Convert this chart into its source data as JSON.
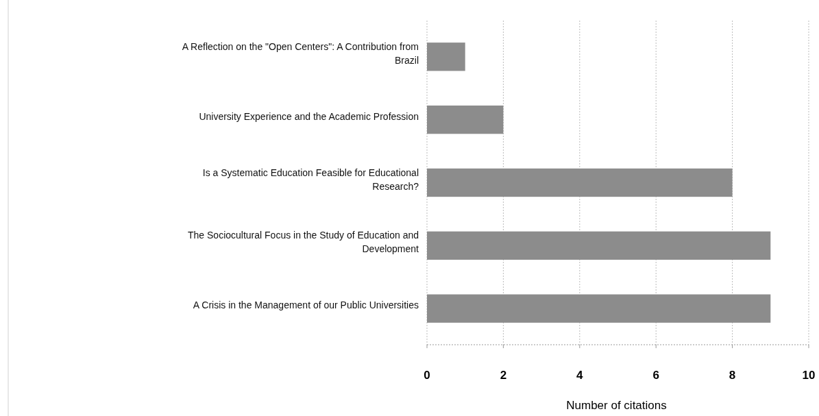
{
  "chart_data": {
    "type": "bar",
    "orientation": "horizontal",
    "xlabel": "Number of citations",
    "categories": [
      "A Reflection on the \"Open Centers\": A Contribution from Brazil",
      "University Experience and the Academic Profession",
      "Is a Systematic Education Feasible for Educational Research?",
      "The Sociocultural Focus in the Study of Education and Development",
      "A Crisis in the Management of our Public Universities"
    ],
    "values": [
      1,
      2,
      8,
      9,
      9
    ],
    "color": "#8c8c8c",
    "xlim": [
      0,
      10
    ],
    "xticks": [
      0,
      2,
      4,
      6,
      8,
      10
    ],
    "grid": "x"
  }
}
